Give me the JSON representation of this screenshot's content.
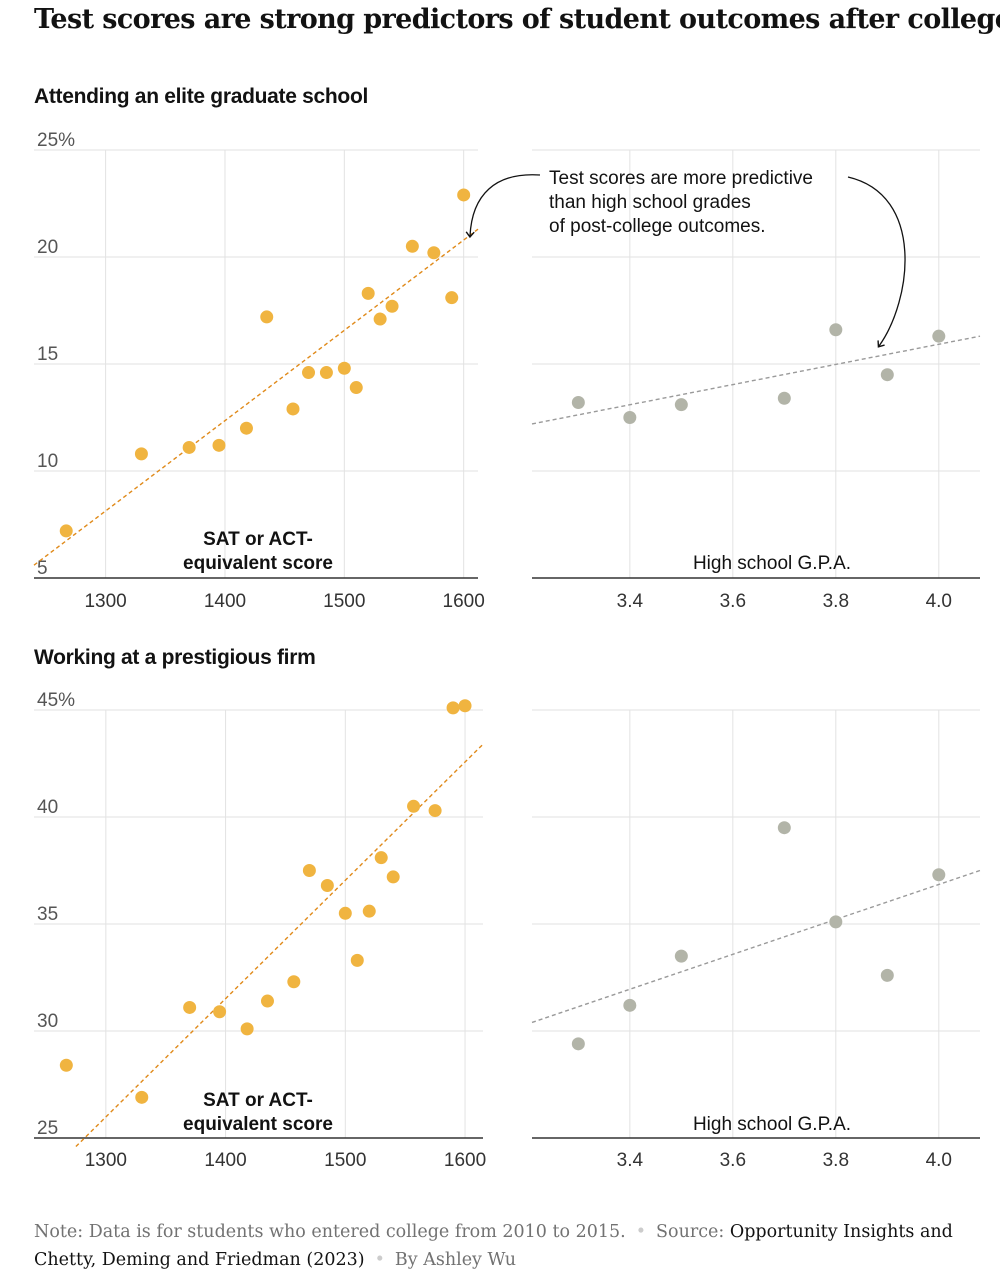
{
  "headline": "Test scores are strong predictors of student outcomes after college",
  "panels": [
    {
      "title": "Attending an elite graduate school"
    },
    {
      "title": "Working at a prestigious firm"
    }
  ],
  "annotation": [
    "Test scores are more predictive",
    "than high school grades",
    "of post-college outcomes."
  ],
  "footer": {
    "note_label": "Note:",
    "note_text": "Data is for students who entered college from 2010 to 2015.",
    "source_label": "Source:",
    "source_text": "Opportunity Insights and Chetty, Deming and Friedman (2023)",
    "byline": "By Ashley Wu"
  },
  "colors": {
    "sat": "#f0b440",
    "sat_trend": "#e08a1a",
    "gpa": "#b2b4a8",
    "gpa_trend": "#9a9a9a",
    "grid": "#e2e2e2",
    "axis": "#333333",
    "tick": "#555555"
  },
  "chart_data": [
    {
      "type": "scatter",
      "title": "Attending an elite graduate school",
      "xlabel": [
        "SAT or ACT-",
        "equivalent score"
      ],
      "xticks": [
        1300,
        1400,
        1500,
        1600
      ],
      "xlim": [
        1240,
        1612
      ],
      "yticks": [
        5,
        10,
        15,
        20,
        25
      ],
      "ytick_labels": [
        "5",
        "10",
        "15",
        "20",
        "25%"
      ],
      "ylim": [
        5,
        25
      ],
      "x": [
        1267,
        1330,
        1370,
        1395,
        1418,
        1435,
        1457,
        1470,
        1485,
        1500,
        1510,
        1520,
        1530,
        1540,
        1557,
        1575,
        1590,
        1600
      ],
      "y": [
        7.2,
        10.8,
        11.1,
        11.2,
        12.0,
        17.2,
        12.9,
        14.6,
        14.6,
        14.8,
        13.9,
        18.3,
        17.1,
        17.7,
        20.5,
        20.2,
        18.1,
        22.9
      ],
      "trend": {
        "x": [
          1240,
          1612
        ],
        "y": [
          5.6,
          21.3
        ]
      }
    },
    {
      "type": "scatter",
      "xlabel": "High school G.P.A.",
      "xticks": [
        3.4,
        3.6,
        3.8,
        4.0
      ],
      "xlim": [
        3.21,
        4.08
      ],
      "yticks": [
        5,
        10,
        15,
        20,
        25
      ],
      "ylim": [
        5,
        25
      ],
      "x": [
        3.3,
        3.4,
        3.5,
        3.7,
        3.8,
        3.9,
        4.0
      ],
      "y": [
        13.2,
        12.5,
        13.1,
        13.4,
        16.6,
        14.5,
        16.3
      ],
      "trend": {
        "x": [
          3.21,
          4.08
        ],
        "y": [
          12.2,
          16.3
        ]
      }
    },
    {
      "type": "scatter",
      "title": "Working at a prestigious firm",
      "xlabel": [
        "SAT or ACT-",
        "equivalent score"
      ],
      "xticks": [
        1300,
        1400,
        1500,
        1600
      ],
      "xlim": [
        1240,
        1615
      ],
      "yticks": [
        25,
        30,
        35,
        40,
        45
      ],
      "ytick_labels": [
        "25",
        "30",
        "35",
        "40",
        "45%"
      ],
      "ylim": [
        25,
        45
      ],
      "x": [
        1267,
        1330,
        1370,
        1395,
        1418,
        1435,
        1457,
        1470,
        1485,
        1500,
        1510,
        1520,
        1530,
        1540,
        1557,
        1575,
        1590,
        1600
      ],
      "y": [
        28.4,
        26.9,
        31.1,
        30.9,
        30.1,
        31.4,
        32.3,
        37.5,
        36.8,
        35.5,
        33.3,
        35.6,
        38.1,
        37.2,
        40.5,
        40.3,
        45.1,
        45.2
      ],
      "trend": {
        "x": [
          1275,
          1615
        ],
        "y": [
          24.6,
          43.4
        ]
      }
    },
    {
      "type": "scatter",
      "xlabel": "High school G.P.A.",
      "xticks": [
        3.4,
        3.6,
        3.8,
        4.0
      ],
      "xlim": [
        3.21,
        4.08
      ],
      "yticks": [
        25,
        30,
        35,
        40,
        45
      ],
      "ylim": [
        25,
        45
      ],
      "x": [
        3.3,
        3.4,
        3.5,
        3.7,
        3.8,
        3.9,
        4.0
      ],
      "y": [
        29.4,
        31.2,
        33.5,
        39.5,
        35.1,
        32.6,
        37.3
      ],
      "trend": {
        "x": [
          3.21,
          4.08
        ],
        "y": [
          30.4,
          37.5
        ]
      }
    }
  ]
}
